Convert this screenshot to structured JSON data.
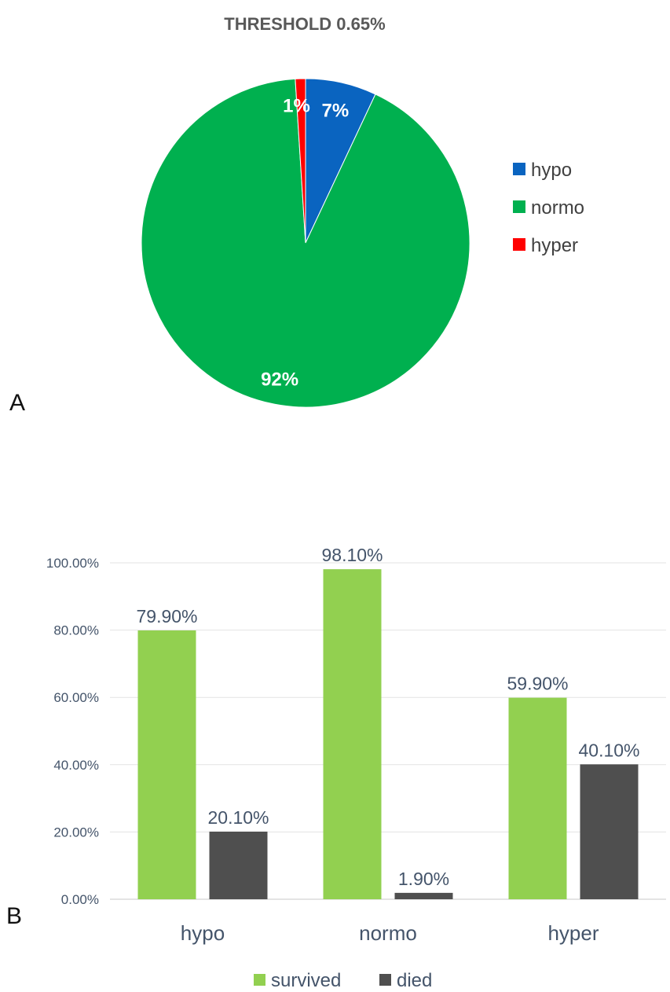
{
  "chart_data": [
    {
      "type": "pie",
      "panel": "A",
      "title": "THRESHOLD 0.65%",
      "slices": [
        {
          "name": "hypo",
          "value": 7,
          "label": "7%",
          "color": "#0a64c0"
        },
        {
          "name": "normo",
          "value": 92,
          "label": "92%",
          "color": "#00b04f"
        },
        {
          "name": "hyper",
          "value": 1,
          "label": "1%",
          "color": "#ff0000"
        }
      ],
      "legend": {
        "position": "right",
        "entries": [
          "hypo",
          "normo",
          "hyper"
        ]
      }
    },
    {
      "type": "bar",
      "panel": "B",
      "categories": [
        "hypo",
        "normo",
        "hyper"
      ],
      "series": [
        {
          "name": "survived",
          "values": [
            79.9,
            98.1,
            59.9
          ],
          "labels": [
            "79.90%",
            "98.10%",
            "59.90%"
          ],
          "color": "#92d050"
        },
        {
          "name": "died",
          "values": [
            20.1,
            1.9,
            40.1
          ],
          "labels": [
            "20.10%",
            "1.90%",
            "40.10%"
          ],
          "color": "#4f4f4f"
        }
      ],
      "ylim": [
        0,
        100
      ],
      "yticks": [
        0,
        20,
        40,
        60,
        80,
        100
      ],
      "ytick_labels": [
        "0.00%",
        "20.00%",
        "40.00%",
        "60.00%",
        "80.00%",
        "100.00%"
      ],
      "grid": true,
      "legend": {
        "position": "bottom",
        "entries": [
          "survived",
          "died"
        ]
      }
    }
  ]
}
